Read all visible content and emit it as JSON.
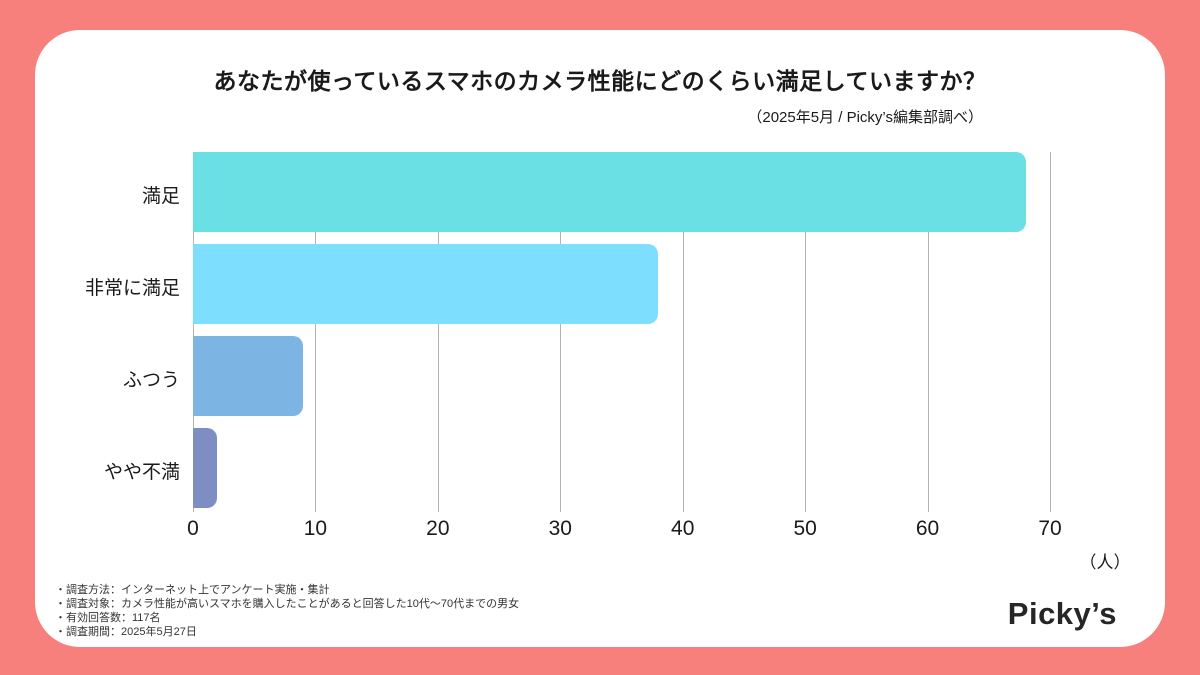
{
  "title": "あなたが使っているスマホのカメラ性能にどのくらい満足していますか？",
  "subtitle": "（2025年5月 / Picky’s編集部調べ）",
  "chart_data": {
    "type": "bar",
    "orientation": "horizontal",
    "title": "あなたが使っているスマホのカメラ性能にどのくらい満足していますか？",
    "categories": [
      "満足",
      "非常に満足",
      "ふつう",
      "やや不満"
    ],
    "values": [
      68,
      38,
      9,
      2
    ],
    "bar_colors": [
      "#6BE0E4",
      "#7DDEFE",
      "#7CB4E4",
      "#7E8EC3"
    ],
    "x_ticks": [
      0,
      10,
      20,
      30,
      40,
      50,
      60,
      70
    ],
    "xlim": [
      0,
      70
    ],
    "xlabel": "（人）",
    "ylabel": "",
    "grid": true,
    "legend": "none"
  },
  "footnotes": [
    "・調査方法：インターネット上でアンケート実施・集計",
    "・調査対象：カメラ性能が高いスマホを購入したことがあると回答した10代〜70代までの男女",
    "・有効回答数：117名",
    "・調査期間：2025年5月27日"
  ],
  "logo": "Picky’s",
  "colors": {
    "background": "#F8807C",
    "card": "#FFFFFF",
    "gridline": "#B3B3B3",
    "text": "#1A1A1A"
  }
}
